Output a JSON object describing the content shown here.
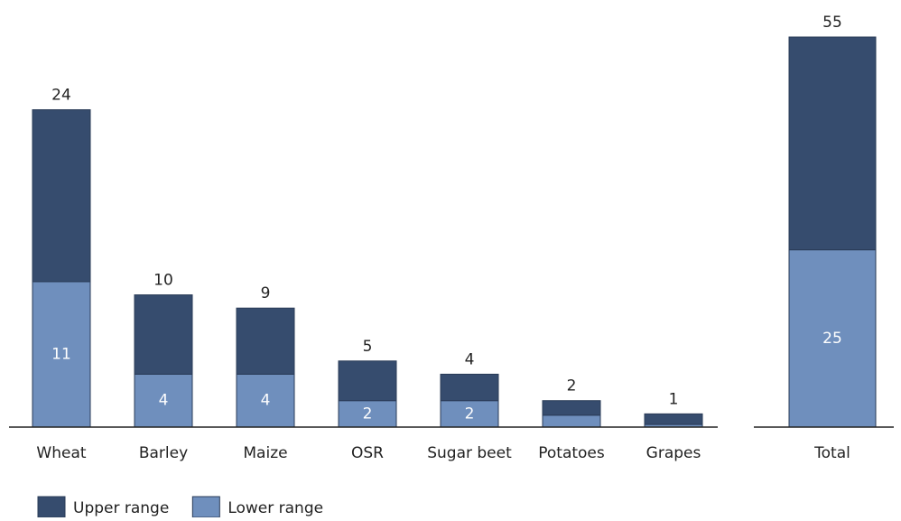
{
  "chart_data": [
    {
      "type": "stacked_bar",
      "categories": [
        "Wheat",
        "Barley",
        "Maize",
        "OSR",
        "Sugar beet",
        "Potatoes",
        "Grapes"
      ],
      "series": [
        {
          "name": "Lower range",
          "color": "#6f8fbd",
          "values": [
            11,
            4,
            4,
            2,
            2,
            0.9,
            0.2
          ],
          "value_labels": [
            "11",
            "4",
            "4",
            "2",
            "2",
            null,
            null
          ]
        },
        {
          "name": "Upper range",
          "color": "#364c6e",
          "values": [
            13,
            6,
            5,
            3,
            2,
            1.1,
            0.8
          ]
        }
      ],
      "totals": [
        24,
        10,
        9,
        5,
        4,
        2,
        1
      ],
      "ylim": [
        0,
        29.5
      ]
    },
    {
      "type": "stacked_bar",
      "categories": [
        "Total"
      ],
      "series": [
        {
          "name": "Lower range",
          "color": "#6f8fbd",
          "values": [
            25
          ],
          "value_labels": [
            "25"
          ]
        },
        {
          "name": "Upper range",
          "color": "#364c6e",
          "values": [
            30
          ]
        }
      ],
      "totals": [
        55
      ],
      "ylim": [
        0,
        55
      ]
    }
  ]
}
